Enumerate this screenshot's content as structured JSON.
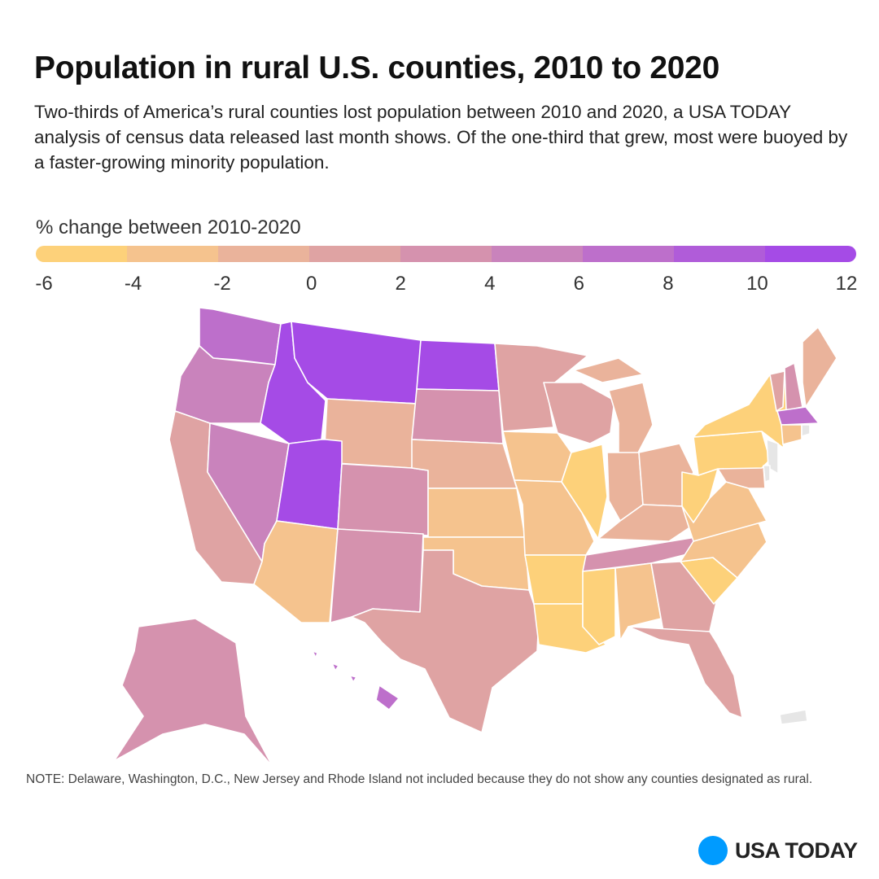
{
  "header": {
    "title": "Population in rural U.S. counties, 2010 to 2020",
    "description": "Two-thirds of America’s rural counties lost population between 2010 and 2020, a USA TODAY analysis of census data released last month shows. Of the one-third that grew, most were buoyed by a faster-growing minority population."
  },
  "chart_data": {
    "type": "choropleth",
    "title": "Population in rural U.S. counties, 2010 to 2020",
    "legend": {
      "title": "% change between 2010-2020",
      "ticks": [
        "-6",
        "-4",
        "-2",
        "0",
        "2",
        "4",
        "6",
        "8",
        "10",
        "12"
      ],
      "colors": [
        "#fdd17a",
        "#f5c38e",
        "#eab39b",
        "#dfa3a3",
        "#d592ae",
        "#c983bc",
        "#bd6fcb",
        "#b05cd9",
        "#a54be6"
      ]
    },
    "no_data_color": "#e6e6e6",
    "states": [
      {
        "code": "WA",
        "range": [
          6,
          8
        ]
      },
      {
        "code": "OR",
        "range": [
          4,
          6
        ]
      },
      {
        "code": "CA",
        "range": [
          0,
          2
        ]
      },
      {
        "code": "NV",
        "range": [
          4,
          6
        ]
      },
      {
        "code": "ID",
        "range": [
          10,
          12
        ]
      },
      {
        "code": "MT",
        "range": [
          10,
          12
        ]
      },
      {
        "code": "WY",
        "range": [
          -2,
          0
        ]
      },
      {
        "code": "UT",
        "range": [
          10,
          12
        ]
      },
      {
        "code": "AZ",
        "range": [
          -4,
          -2
        ]
      },
      {
        "code": "CO",
        "range": [
          2,
          4
        ]
      },
      {
        "code": "NM",
        "range": [
          2,
          4
        ]
      },
      {
        "code": "ND",
        "range": [
          10,
          12
        ]
      },
      {
        "code": "SD",
        "range": [
          2,
          4
        ]
      },
      {
        "code": "NE",
        "range": [
          -2,
          0
        ]
      },
      {
        "code": "KS",
        "range": [
          -4,
          -2
        ]
      },
      {
        "code": "OK",
        "range": [
          -4,
          -2
        ]
      },
      {
        "code": "TX",
        "range": [
          0,
          2
        ]
      },
      {
        "code": "MN",
        "range": [
          0,
          2
        ]
      },
      {
        "code": "IA",
        "range": [
          -4,
          -2
        ]
      },
      {
        "code": "MO",
        "range": [
          -4,
          -2
        ]
      },
      {
        "code": "AR",
        "range": [
          -6,
          -4
        ]
      },
      {
        "code": "LA",
        "range": [
          -6,
          -4
        ]
      },
      {
        "code": "WI",
        "range": [
          0,
          2
        ]
      },
      {
        "code": "IL",
        "range": [
          -6,
          -4
        ]
      },
      {
        "code": "MI",
        "range": [
          -2,
          0
        ]
      },
      {
        "code": "IN",
        "range": [
          -2,
          0
        ]
      },
      {
        "code": "OH",
        "range": [
          -2,
          0
        ]
      },
      {
        "code": "KY",
        "range": [
          -2,
          0
        ]
      },
      {
        "code": "TN",
        "range": [
          2,
          4
        ]
      },
      {
        "code": "MS",
        "range": [
          -6,
          -4
        ]
      },
      {
        "code": "AL",
        "range": [
          -4,
          -2
        ]
      },
      {
        "code": "GA",
        "range": [
          0,
          2
        ]
      },
      {
        "code": "FL",
        "range": [
          0,
          2
        ]
      },
      {
        "code": "SC",
        "range": [
          -6,
          -4
        ]
      },
      {
        "code": "NC",
        "range": [
          -4,
          -2
        ]
      },
      {
        "code": "VA",
        "range": [
          -4,
          -2
        ]
      },
      {
        "code": "WV",
        "range": [
          -6,
          -4
        ]
      },
      {
        "code": "MD",
        "range": [
          -2,
          0
        ]
      },
      {
        "code": "PA",
        "range": [
          -6,
          -4
        ]
      },
      {
        "code": "NY",
        "range": [
          -6,
          -4
        ]
      },
      {
        "code": "VT",
        "range": [
          0,
          2
        ]
      },
      {
        "code": "NH",
        "range": [
          2,
          4
        ]
      },
      {
        "code": "ME",
        "range": [
          -2,
          0
        ]
      },
      {
        "code": "MA",
        "range": [
          6,
          8
        ]
      },
      {
        "code": "CT",
        "range": [
          -4,
          -2
        ]
      },
      {
        "code": "AK",
        "range": [
          2,
          4
        ]
      },
      {
        "code": "HI",
        "range": [
          6,
          8
        ]
      },
      {
        "code": "NJ",
        "range": null
      },
      {
        "code": "DE",
        "range": null
      },
      {
        "code": "RI",
        "range": null
      },
      {
        "code": "PR",
        "range": null
      }
    ]
  },
  "note": "NOTE: Delaware, Washington, D.C., New Jersey and Rhode Island not included because they do not show any counties designated as rural.",
  "brand": {
    "name": "USA TODAY",
    "color": "#009bff"
  }
}
